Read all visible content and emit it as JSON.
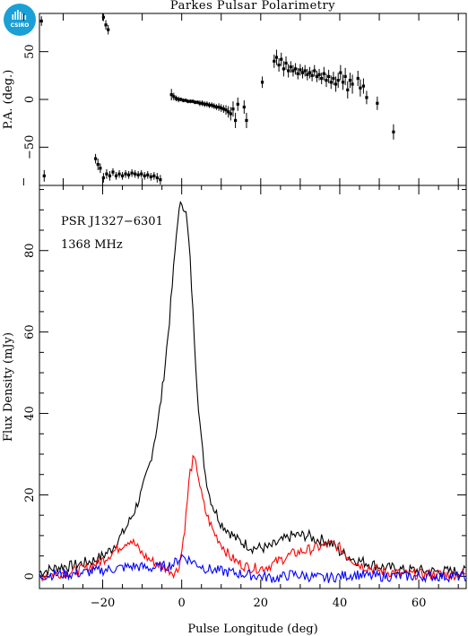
{
  "logo": {
    "text": "CSIRO",
    "color": "#1a9fd6"
  },
  "chart_data": [
    {
      "type": "scatter",
      "title": "Parkes Pulsar Polarimetry",
      "ylabel": "P.A. (deg.)",
      "xlim": [
        -36,
        72
      ],
      "ylim": [
        -90,
        90
      ],
      "yticks": [
        -50,
        0,
        50
      ],
      "series": [
        {
          "marker": "square-with-errorbar",
          "color": "#000000",
          "points": [
            {
              "x": -35.5,
              "y": 82,
              "e": 5
            },
            {
              "x": -34.8,
              "y": -80,
              "e": 6
            },
            {
              "x": -19.8,
              "y": 86,
              "e": 4
            },
            {
              "x": -19.2,
              "y": 78,
              "e": 5
            },
            {
              "x": -18.6,
              "y": 73,
              "e": 5
            },
            {
              "x": -21.8,
              "y": -62,
              "e": 5
            },
            {
              "x": -21.2,
              "y": -68,
              "e": 6
            },
            {
              "x": -20.6,
              "y": -72,
              "e": 5
            },
            {
              "x": -19.8,
              "y": -82,
              "e": 5
            },
            {
              "x": -19.0,
              "y": -78,
              "e": 5
            },
            {
              "x": -18.2,
              "y": -80,
              "e": 5
            },
            {
              "x": -17.4,
              "y": -76,
              "e": 4
            },
            {
              "x": -16.6,
              "y": -80,
              "e": 4
            },
            {
              "x": -15.8,
              "y": -78,
              "e": 4
            },
            {
              "x": -15.0,
              "y": -80,
              "e": 4
            },
            {
              "x": -14.2,
              "y": -78,
              "e": 4
            },
            {
              "x": -13.4,
              "y": -79,
              "e": 4
            },
            {
              "x": -12.6,
              "y": -77,
              "e": 4
            },
            {
              "x": -11.8,
              "y": -78,
              "e": 4
            },
            {
              "x": -11.0,
              "y": -79,
              "e": 4
            },
            {
              "x": -10.2,
              "y": -78,
              "e": 4
            },
            {
              "x": -9.4,
              "y": -80,
              "e": 4
            },
            {
              "x": -8.6,
              "y": -79,
              "e": 4
            },
            {
              "x": -7.8,
              "y": -81,
              "e": 4
            },
            {
              "x": -7.0,
              "y": -80,
              "e": 4
            },
            {
              "x": -6.2,
              "y": -82,
              "e": 5
            },
            {
              "x": -5.4,
              "y": -84,
              "e": 5
            },
            {
              "x": -2.6,
              "y": 5,
              "e": 6
            },
            {
              "x": -2.0,
              "y": 3,
              "e": 4
            },
            {
              "x": -1.4,
              "y": 1,
              "e": 3
            },
            {
              "x": -0.8,
              "y": 0,
              "e": 3
            },
            {
              "x": -0.2,
              "y": 0,
              "e": 2
            },
            {
              "x": 0.4,
              "y": -1,
              "e": 2
            },
            {
              "x": 1.0,
              "y": -1,
              "e": 2
            },
            {
              "x": 1.6,
              "y": -2,
              "e": 2
            },
            {
              "x": 2.2,
              "y": -2,
              "e": 2
            },
            {
              "x": 2.8,
              "y": -2,
              "e": 2
            },
            {
              "x": 3.4,
              "y": -3,
              "e": 2
            },
            {
              "x": 4.0,
              "y": -3,
              "e": 2
            },
            {
              "x": 4.6,
              "y": -4,
              "e": 3
            },
            {
              "x": 5.2,
              "y": -4,
              "e": 3
            },
            {
              "x": 5.8,
              "y": -5,
              "e": 3
            },
            {
              "x": 6.4,
              "y": -5,
              "e": 3
            },
            {
              "x": 7.0,
              "y": -6,
              "e": 3
            },
            {
              "x": 7.6,
              "y": -6,
              "e": 3
            },
            {
              "x": 8.2,
              "y": -7,
              "e": 3
            },
            {
              "x": 8.8,
              "y": -8,
              "e": 3
            },
            {
              "x": 9.4,
              "y": -8,
              "e": 4
            },
            {
              "x": 10.0,
              "y": -9,
              "e": 4
            },
            {
              "x": 10.6,
              "y": -10,
              "e": 4
            },
            {
              "x": 11.2,
              "y": -11,
              "e": 5
            },
            {
              "x": 11.8,
              "y": -13,
              "e": 6
            },
            {
              "x": 12.4,
              "y": -15,
              "e": 7
            },
            {
              "x": 13.0,
              "y": -10,
              "e": 8
            },
            {
              "x": 13.6,
              "y": -22,
              "e": 8
            },
            {
              "x": 14.2,
              "y": -5,
              "e": 7
            },
            {
              "x": 15.8,
              "y": -8,
              "e": 7
            },
            {
              "x": 16.4,
              "y": -22,
              "e": 8
            },
            {
              "x": 20.4,
              "y": 18,
              "e": 6
            },
            {
              "x": 23.4,
              "y": 40,
              "e": 7
            },
            {
              "x": 24.0,
              "y": 44,
              "e": 8
            },
            {
              "x": 24.6,
              "y": 36,
              "e": 7
            },
            {
              "x": 25.2,
              "y": 42,
              "e": 7
            },
            {
              "x": 25.8,
              "y": 32,
              "e": 8
            },
            {
              "x": 26.4,
              "y": 38,
              "e": 7
            },
            {
              "x": 27.0,
              "y": 30,
              "e": 7
            },
            {
              "x": 27.6,
              "y": 34,
              "e": 6
            },
            {
              "x": 28.2,
              "y": 30,
              "e": 6
            },
            {
              "x": 28.8,
              "y": 32,
              "e": 6
            },
            {
              "x": 29.4,
              "y": 27,
              "e": 6
            },
            {
              "x": 30.0,
              "y": 31,
              "e": 6
            },
            {
              "x": 30.6,
              "y": 28,
              "e": 6
            },
            {
              "x": 31.2,
              "y": 30,
              "e": 6
            },
            {
              "x": 31.8,
              "y": 26,
              "e": 6
            },
            {
              "x": 32.4,
              "y": 28,
              "e": 6
            },
            {
              "x": 33.0,
              "y": 25,
              "e": 6
            },
            {
              "x": 33.6,
              "y": 30,
              "e": 6
            },
            {
              "x": 34.2,
              "y": 24,
              "e": 6
            },
            {
              "x": 34.8,
              "y": 26,
              "e": 6
            },
            {
              "x": 35.4,
              "y": 22,
              "e": 6
            },
            {
              "x": 36.0,
              "y": 27,
              "e": 7
            },
            {
              "x": 36.6,
              "y": 20,
              "e": 7
            },
            {
              "x": 37.2,
              "y": 24,
              "e": 7
            },
            {
              "x": 37.8,
              "y": 18,
              "e": 7
            },
            {
              "x": 38.4,
              "y": 22,
              "e": 7
            },
            {
              "x": 39.0,
              "y": 16,
              "e": 8
            },
            {
              "x": 39.6,
              "y": 20,
              "e": 8
            },
            {
              "x": 40.2,
              "y": 28,
              "e": 8
            },
            {
              "x": 40.8,
              "y": 18,
              "e": 8
            },
            {
              "x": 41.4,
              "y": 24,
              "e": 9
            },
            {
              "x": 42.0,
              "y": 10,
              "e": 9
            },
            {
              "x": 42.6,
              "y": 20,
              "e": 8
            },
            {
              "x": 43.2,
              "y": 16,
              "e": 10
            },
            {
              "x": 44.6,
              "y": 22,
              "e": 8
            },
            {
              "x": 45.2,
              "y": 12,
              "e": 9
            },
            {
              "x": 46.0,
              "y": 14,
              "e": 8
            },
            {
              "x": 46.8,
              "y": 2,
              "e": 7
            },
            {
              "x": 49.5,
              "y": -4,
              "e": 7
            },
            {
              "x": 53.6,
              "y": -34,
              "e": 8
            }
          ]
        }
      ]
    },
    {
      "type": "line",
      "xlabel": "Pulse Longitude (deg)",
      "ylabel": "Flux Density (mJy)",
      "xlim": [
        -36,
        72
      ],
      "ylim": [
        -3,
        96
      ],
      "xticks": [
        -20,
        0,
        20,
        40,
        60
      ],
      "yticks": [
        0,
        20,
        40,
        60,
        80
      ],
      "annotations": [
        "PSR J1327−6301",
        "1368 MHz"
      ],
      "series": [
        {
          "color": "#000000",
          "x": [
            -36,
            -34,
            -32,
            -30,
            -28,
            -26,
            -24,
            -22,
            -20,
            -18,
            -16,
            -14,
            -12,
            -10,
            -8,
            -6,
            -5,
            -4,
            -3,
            -2,
            -1,
            0,
            1,
            2,
            3,
            4,
            5,
            6,
            7,
            8,
            10,
            12,
            14,
            16,
            18,
            20,
            22,
            24,
            26,
            28,
            30,
            32,
            34,
            36,
            38,
            40,
            42,
            44,
            46,
            48,
            50,
            52,
            54,
            56,
            58,
            60,
            62,
            64,
            66,
            68,
            70,
            72
          ],
          "values": [
            1,
            1.5,
            2,
            2.5,
            2.5,
            3,
            3.5,
            4,
            5,
            6.5,
            9,
            12,
            16,
            21,
            28,
            38,
            45,
            54,
            64,
            76,
            88,
            92,
            90,
            80,
            62,
            45,
            33,
            25,
            20,
            17,
            13,
            11,
            9,
            8,
            7,
            7,
            7,
            8,
            9,
            10,
            10,
            10,
            9,
            9,
            8,
            6,
            5,
            4,
            3.5,
            3,
            2.5,
            2,
            2,
            1.5,
            1.5,
            1.5,
            1.2,
            1.2,
            1.2,
            1.2,
            1.2,
            1.2
          ]
        },
        {
          "color": "#ff0000",
          "x": [
            -36,
            -34,
            -32,
            -30,
            -28,
            -26,
            -24,
            -22,
            -20,
            -18,
            -16,
            -14,
            -13,
            -12,
            -10,
            -8,
            -6,
            -4,
            -2,
            -1,
            0,
            1,
            2,
            3,
            4,
            5,
            6,
            8,
            10,
            12,
            14,
            16,
            18,
            20,
            22,
            24,
            26,
            28,
            30,
            32,
            34,
            36,
            38,
            40,
            42,
            44,
            46,
            48,
            50,
            52,
            54,
            56,
            58,
            60,
            62,
            64,
            66,
            68,
            70,
            72
          ],
          "values": [
            0,
            0.5,
            0.5,
            1,
            1,
            1.5,
            2,
            3,
            4,
            5.5,
            7,
            8.5,
            9,
            8,
            5.5,
            4,
            3,
            2,
            1,
            1.5,
            6,
            14,
            25,
            29,
            26,
            20,
            16,
            11,
            8,
            5,
            3.5,
            2.5,
            2,
            2,
            2.5,
            3.5,
            4.5,
            5.5,
            6,
            6.5,
            7,
            7.5,
            8,
            7,
            5,
            3.5,
            2.5,
            2,
            1.5,
            1,
            1,
            0.5,
            0.5,
            0.5,
            0.5,
            0.5,
            0.5,
            0.5,
            0.5,
            0.5
          ]
        },
        {
          "color": "#0000ff",
          "x": [
            -36,
            -32,
            -28,
            -24,
            -20,
            -16,
            -12,
            -8,
            -4,
            -2,
            0,
            1,
            2,
            4,
            6,
            8,
            12,
            16,
            20,
            24,
            28,
            32,
            36,
            40,
            44,
            48,
            52,
            56,
            60,
            64,
            68,
            72
          ],
          "values": [
            0,
            0.5,
            0.5,
            1,
            1.5,
            2,
            2.5,
            2,
            2.5,
            3,
            5,
            4.5,
            4,
            3,
            2,
            1.5,
            1,
            0.5,
            0,
            -0.5,
            0.5,
            0,
            -0.5,
            0,
            0.5,
            0,
            0,
            0,
            0,
            0,
            0,
            0
          ]
        }
      ]
    }
  ]
}
